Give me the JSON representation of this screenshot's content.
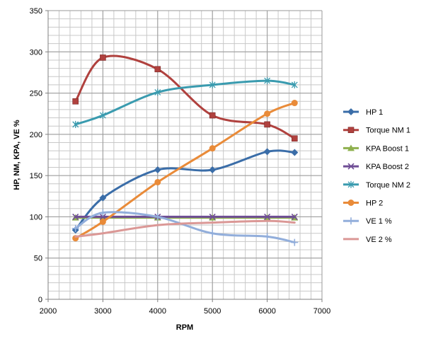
{
  "chart_data": {
    "type": "line",
    "title": "",
    "xlabel": "RPM",
    "ylabel": "HP, NM, KPA, VE %",
    "xlim": [
      2000,
      7000
    ],
    "ylim": [
      0,
      350
    ],
    "x_ticks": [
      2000,
      3000,
      4000,
      5000,
      6000,
      7000
    ],
    "y_ticks": [
      0,
      50,
      100,
      150,
      200,
      250,
      300,
      350
    ],
    "x_minor_step": 200,
    "y_minor_step": 10,
    "grid": true,
    "smooth": true,
    "legend_position": "right",
    "series": [
      {
        "name": "HP 1",
        "color": "#3A6DA8",
        "marker": "diamond",
        "x": [
          2500,
          3000,
          4000,
          5000,
          6000,
          6500
        ],
        "y": [
          84,
          123,
          157,
          157,
          179,
          178
        ]
      },
      {
        "name": "Torque NM 1",
        "color": "#B0413E",
        "marker": "square",
        "x": [
          2500,
          3000,
          4000,
          5000,
          6000,
          6500
        ],
        "y": [
          240,
          293,
          279,
          223,
          212,
          195
        ]
      },
      {
        "name": "KPA Boost 1",
        "color": "#8EB04E",
        "marker": "triangle",
        "x": [
          2500,
          3000,
          4000,
          5000,
          6000,
          6500
        ],
        "y": [
          99,
          99,
          99,
          99,
          99,
          99
        ]
      },
      {
        "name": "KPA Boost 2",
        "color": "#6F4E95",
        "marker": "x",
        "x": [
          2500,
          3000,
          4000,
          5000,
          6000,
          6500
        ],
        "y": [
          100,
          100,
          100,
          100,
          100,
          100
        ]
      },
      {
        "name": "Torque NM 2",
        "color": "#3A9BAF",
        "marker": "asterisk",
        "x": [
          2500,
          3000,
          4000,
          5000,
          6000,
          6500
        ],
        "y": [
          212,
          223,
          251,
          260,
          265,
          260
        ]
      },
      {
        "name": "HP 2",
        "color": "#E98B39",
        "marker": "circle",
        "x": [
          2500,
          3000,
          4000,
          5000,
          6000,
          6500
        ],
        "y": [
          74,
          94,
          142,
          183,
          225,
          238
        ]
      },
      {
        "name": "VE 1 %",
        "color": "#92AEDB",
        "marker": "plus",
        "x": [
          2500,
          3000,
          4000,
          5000,
          6000,
          6500
        ],
        "y": [
          86,
          105,
          100,
          80,
          76,
          69
        ]
      },
      {
        "name": "VE 2 %",
        "color": "#DB9896",
        "marker": "none",
        "x": [
          2500,
          3000,
          4000,
          5000,
          6000,
          6500
        ],
        "y": [
          76,
          80,
          90,
          93,
          95,
          93
        ]
      }
    ]
  }
}
